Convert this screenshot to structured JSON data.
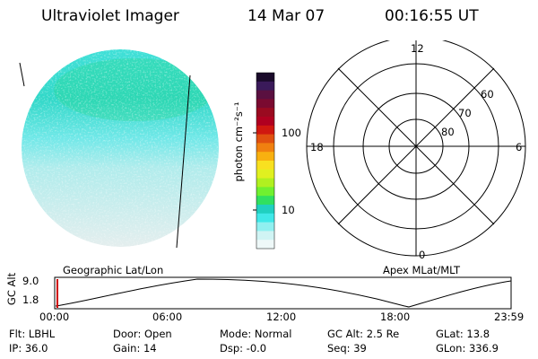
{
  "header": {
    "instrument": "Ultraviolet Imager",
    "date": "14 Mar 07",
    "time": "00:16:55 UT"
  },
  "colorbar": {
    "unit_label": "photon cm⁻²s⁻¹",
    "ticks": [
      "100",
      "10"
    ],
    "colors": [
      "#1a0a2a",
      "#3a1a5a",
      "#5a1040",
      "#7a0a30",
      "#9a0a20",
      "#b00020",
      "#d01810",
      "#e05010",
      "#f08010",
      "#f8b010",
      "#f8e020",
      "#e0f020",
      "#b0f020",
      "#70f030",
      "#30e060",
      "#20d0c0",
      "#40e8e8",
      "#90f0f0",
      "#d0f4f4",
      "#eef8f8"
    ]
  },
  "polar_plot": {
    "labels": [
      "12",
      "6",
      "18",
      "0",
      "60",
      "70",
      "80"
    ]
  },
  "timeline": {
    "y_axis_label": "GC Alt",
    "y_ticks": [
      "9.0",
      "1.8"
    ],
    "left_caption": "Geographic Lat/Lon",
    "right_caption": "Apex MLat/MLT",
    "x_ticks": [
      "00:00",
      "06:00",
      "12:00",
      "18:00",
      "23:59"
    ]
  },
  "info": {
    "row1": [
      "Flt: LBHL",
      "Door: Open",
      "Mode: Normal",
      "GC Alt: 2.5 Re",
      "GLat:  13.8"
    ],
    "row2": [
      "IP: 36.0",
      "Gain: 14",
      "Dsp:   -0.0",
      "Seq: 39",
      "GLon: 336.9"
    ]
  }
}
